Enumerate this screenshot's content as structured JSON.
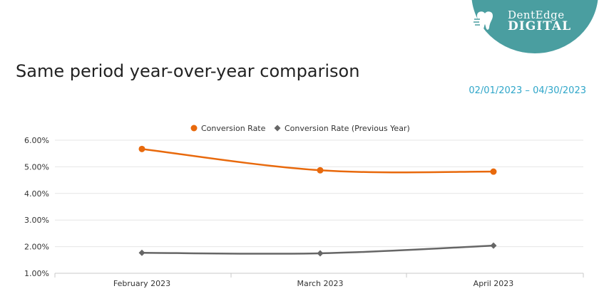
{
  "logo": {
    "line1": "DentEdge",
    "line2": "DIGITAL",
    "icon": "tooth-icon",
    "color": "#4a9ea0"
  },
  "title": "Same period year-over-year comparison",
  "date_range": "02/01/2023 – 04/30/2023",
  "chart_data": {
    "type": "line",
    "categories": [
      "February 2023",
      "March 2023",
      "April 2023"
    ],
    "series": [
      {
        "name": "Conversion Rate",
        "values": [
          5.67,
          4.87,
          4.82
        ],
        "color": "#e8690c",
        "marker": "circle"
      },
      {
        "name": "Conversion Rate (Previous Year)",
        "values": [
          1.77,
          1.75,
          2.04
        ],
        "color": "#666666",
        "marker": "diamond"
      }
    ],
    "y_ticks": [
      "1.00%",
      "2.00%",
      "3.00%",
      "4.00%",
      "5.00%",
      "6.00%"
    ],
    "ylim": [
      1,
      6
    ],
    "grid": true,
    "legend_position": "top-center"
  }
}
